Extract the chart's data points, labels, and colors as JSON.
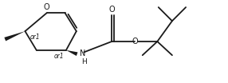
{
  "bg_color": "#ffffff",
  "line_color": "#1a1a1a",
  "line_width": 1.3,
  "font_size_label": 7.0,
  "font_size_or": 5.5,
  "figsize": [
    2.86,
    1.04
  ],
  "dpi": 100,
  "xlim": [
    0,
    10
  ],
  "ylim": [
    0,
    3.6
  ]
}
